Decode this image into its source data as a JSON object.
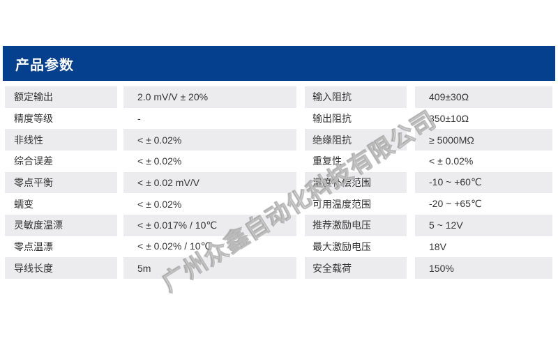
{
  "header": {
    "title": "产品参数"
  },
  "table": {
    "left": [
      {
        "label": "额定输出",
        "value": "2.0 mV/V ± 20%"
      },
      {
        "label": "精度等级",
        "value": "-"
      },
      {
        "label": "非线性",
        "value": "< ± 0.02%"
      },
      {
        "label": "综合误差",
        "value": "< ± 0.02%"
      },
      {
        "label": "零点平衡",
        "value": "< ± 0.02 mV/V"
      },
      {
        "label": "蠕变",
        "value": "< ± 0.02%"
      },
      {
        "label": "灵敏度温漂",
        "value": "< ± 0.017% / 10℃"
      },
      {
        "label": "零点温漂",
        "value": "< ± 0.02% / 10℃"
      },
      {
        "label": "导线长度",
        "value": "5m"
      }
    ],
    "right": [
      {
        "label": "输入阻抗",
        "value": "409±30Ω"
      },
      {
        "label": "输出阻抗",
        "value": "350±10Ω"
      },
      {
        "label": "绝缘阻抗",
        "value": "≥ 5000MΩ"
      },
      {
        "label": "重复性",
        "value": "< ± 0.02%"
      },
      {
        "label": "温度补偿范围",
        "value": "-10 ~ +60℃"
      },
      {
        "label": "可用温度范围",
        "value": "-20 ~ +65℃"
      },
      {
        "label": "推荐激励电压",
        "value": "5 ~ 12V"
      },
      {
        "label": "最大激励电压",
        "value": "18V"
      },
      {
        "label": "安全载荷",
        "value": "150%"
      }
    ]
  },
  "watermark": {
    "text": "广州众鑫自动化科技有限公司"
  },
  "colors": {
    "header_bg": "#05408f",
    "title_color": "#ffffff",
    "row_alt_bg": "#ececee",
    "text_color": "#333333"
  }
}
